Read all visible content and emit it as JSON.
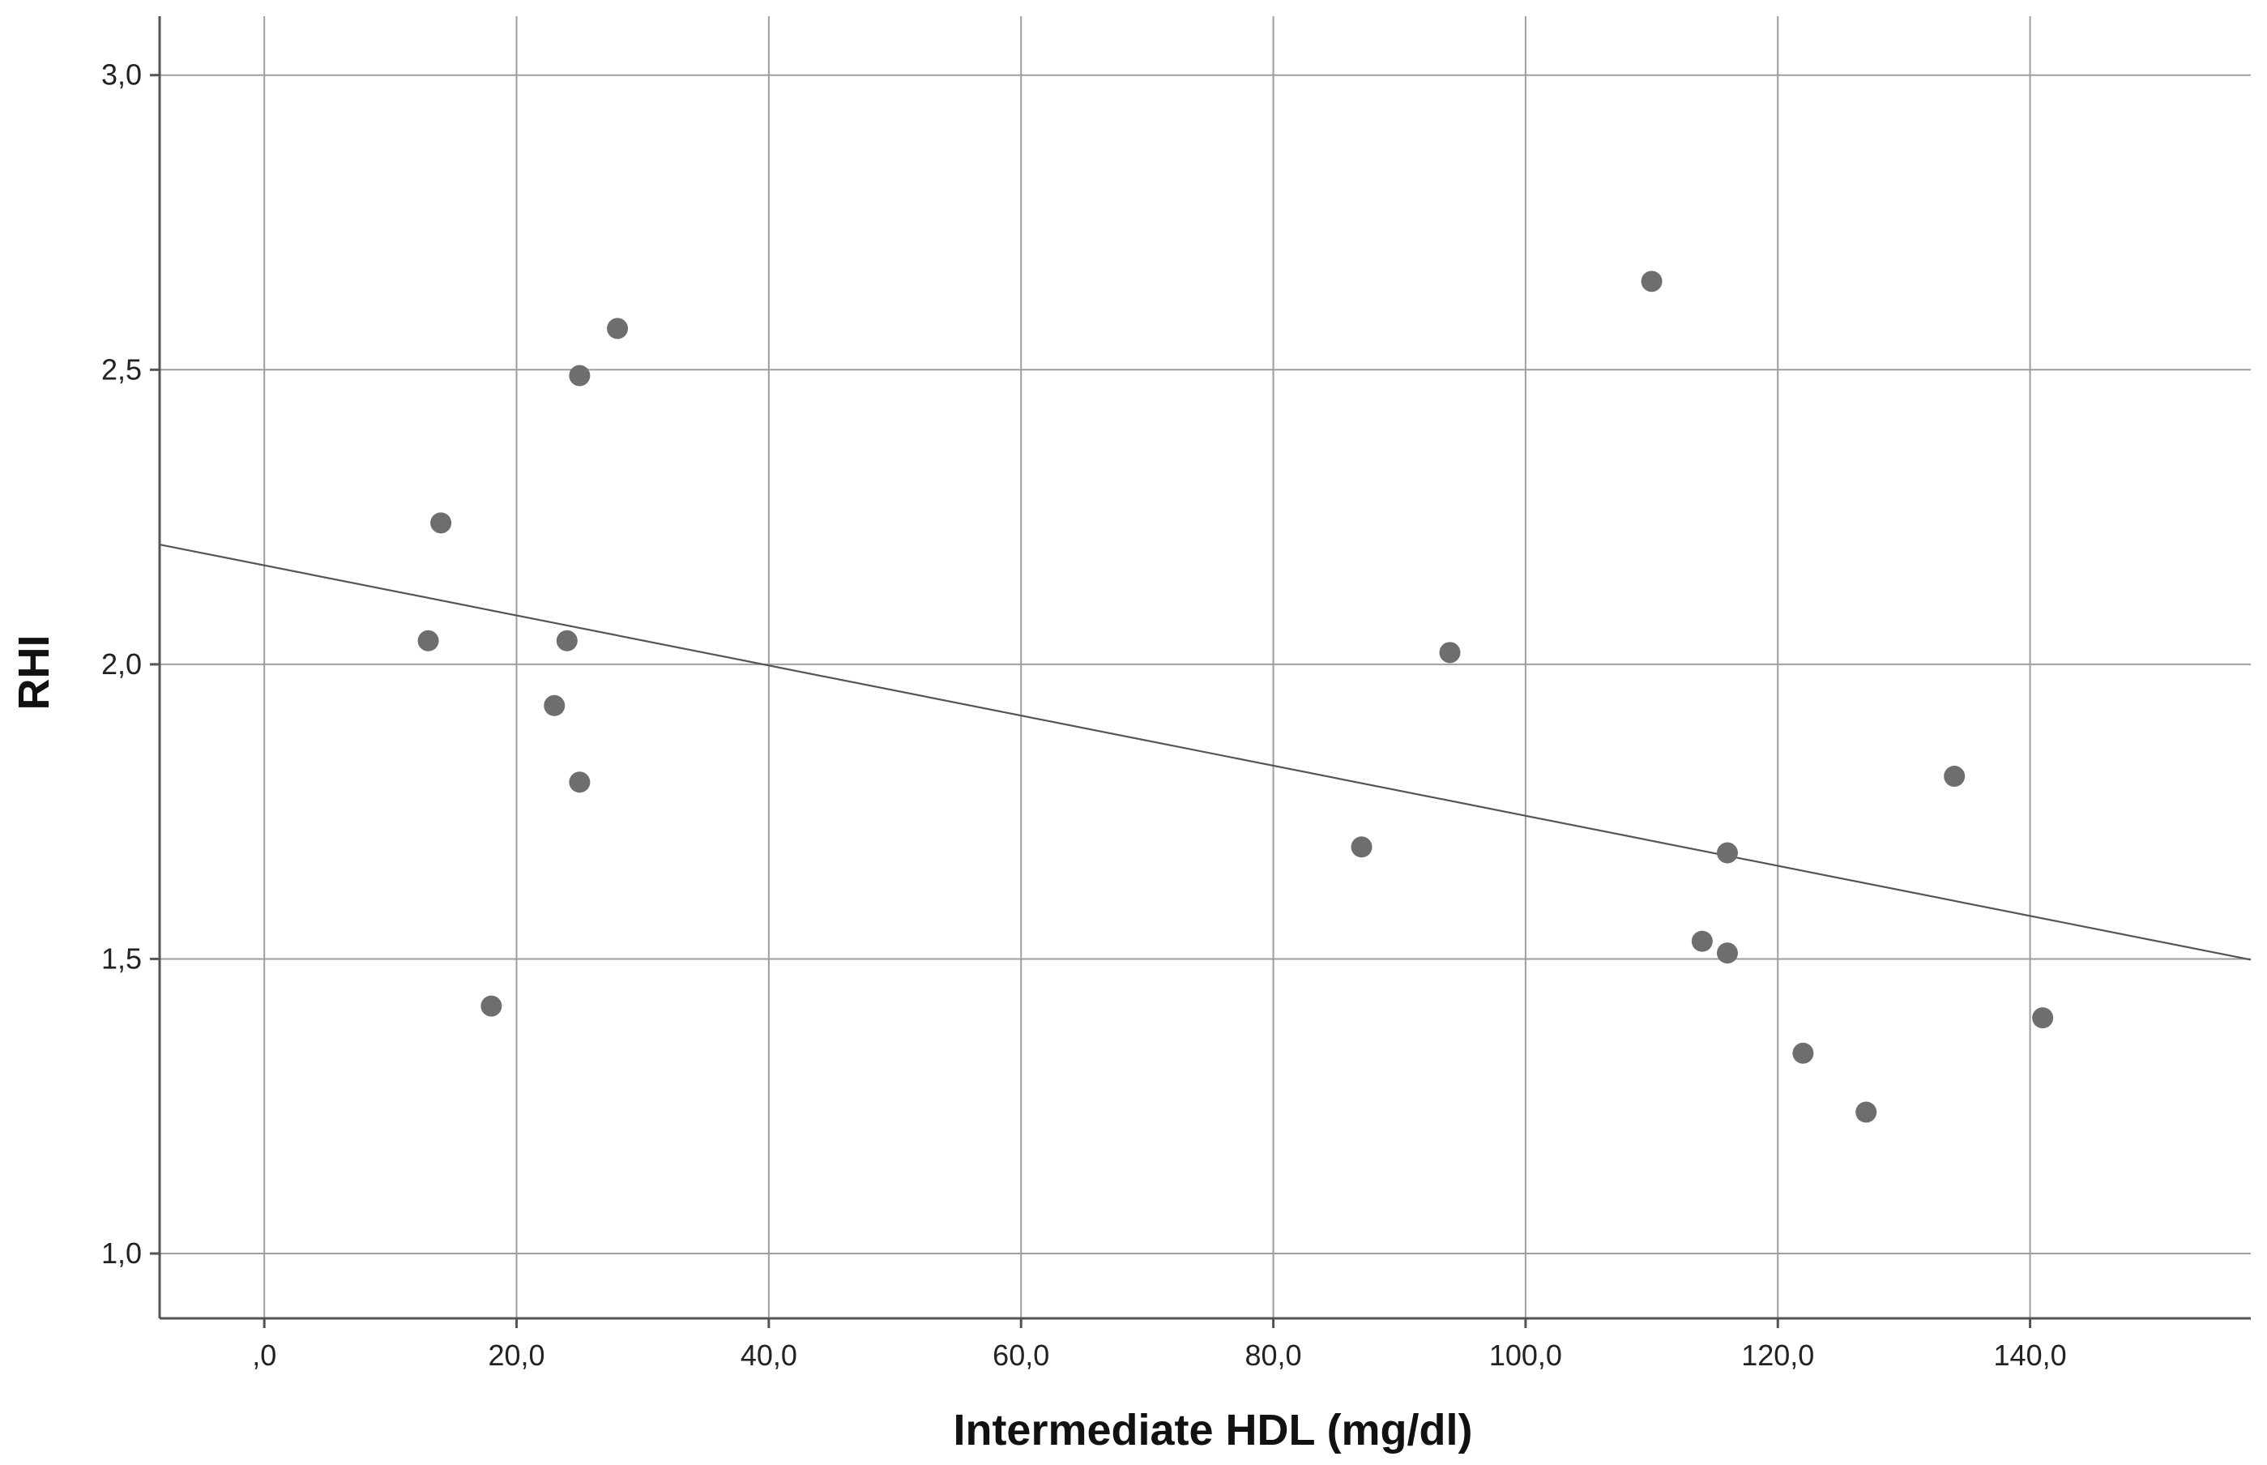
{
  "chart_data": {
    "type": "scatter",
    "title": "",
    "xlabel": "Intermediate HDL (mg/dl)",
    "ylabel": "RHI",
    "xlim": [
      -8.3,
      157.5
    ],
    "ylim": [
      0.89,
      3.1
    ],
    "x_ticks": [
      0,
      20,
      40,
      60,
      80,
      100,
      120,
      140
    ],
    "x_tick_labels": [
      ",0",
      "20,0",
      "40,0",
      "60,0",
      "80,0",
      "100,0",
      "120,0",
      "140,0"
    ],
    "y_ticks": [
      1.0,
      1.5,
      2.0,
      2.5,
      3.0
    ],
    "y_tick_labels": [
      "1,0",
      "1,5",
      "2,0",
      "2,5",
      "3,0"
    ],
    "grid": true,
    "points": [
      {
        "x": 13,
        "y": 2.04
      },
      {
        "x": 14,
        "y": 2.24
      },
      {
        "x": 18,
        "y": 1.42
      },
      {
        "x": 23,
        "y": 1.93
      },
      {
        "x": 24,
        "y": 2.04
      },
      {
        "x": 25,
        "y": 2.49
      },
      {
        "x": 25,
        "y": 1.8
      },
      {
        "x": 28,
        "y": 2.57
      },
      {
        "x": 87,
        "y": 1.69
      },
      {
        "x": 94,
        "y": 2.02
      },
      {
        "x": 110,
        "y": 2.65
      },
      {
        "x": 114,
        "y": 1.53
      },
      {
        "x": 116,
        "y": 1.68
      },
      {
        "x": 116,
        "y": 1.51
      },
      {
        "x": 122,
        "y": 1.34
      },
      {
        "x": 127,
        "y": 1.24
      },
      {
        "x": 134,
        "y": 1.81
      },
      {
        "x": 141,
        "y": 1.4
      }
    ],
    "fit_line": {
      "intercept": 2.168,
      "slope": -0.00425
    },
    "colors": {
      "points": "#6e6e6e",
      "fit_line": "#555555",
      "grid": "#9e9e9e",
      "axis": "#555555"
    }
  }
}
